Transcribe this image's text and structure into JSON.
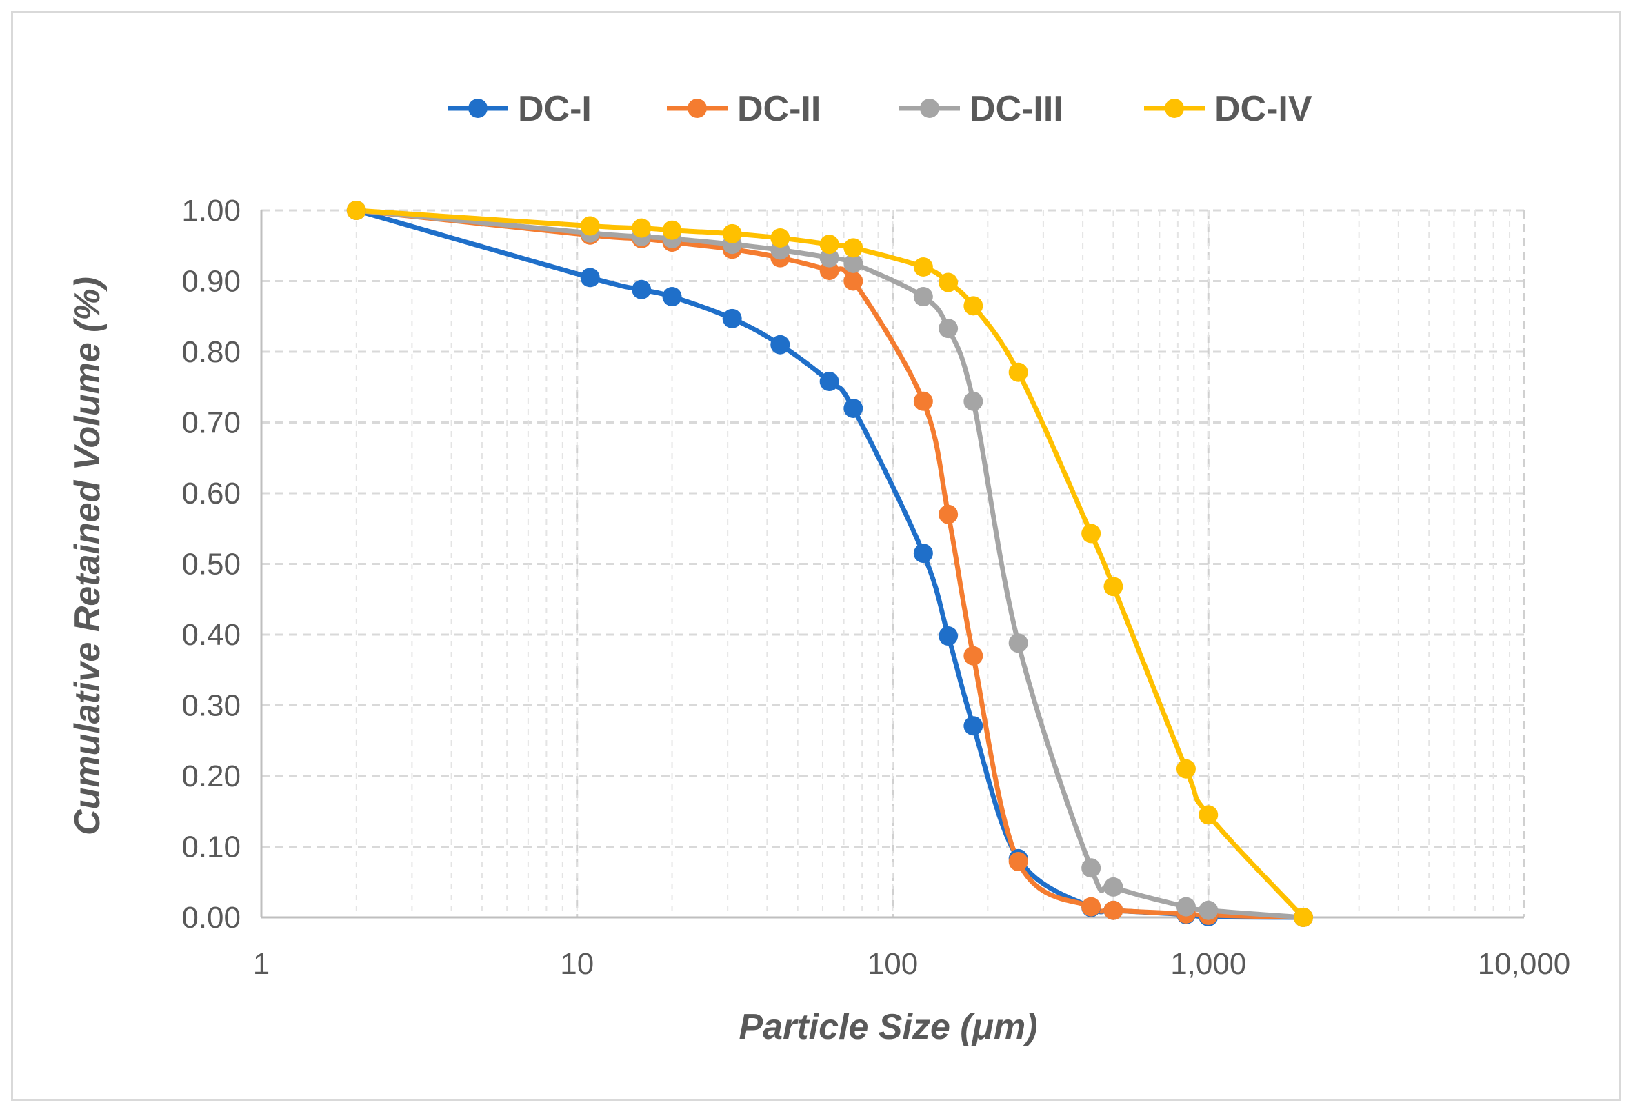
{
  "chart_data": {
    "type": "line",
    "title": "",
    "xlabel": "Particle Size (μm)",
    "ylabel": "Cumulative Retained Volume (%)",
    "x_scale": "log",
    "xlim": [
      1,
      10000
    ],
    "ylim": [
      0,
      1
    ],
    "x_ticks": [
      "1",
      "10",
      "100",
      "1,000",
      "10,000"
    ],
    "y_ticks": [
      "0.00",
      "0.10",
      "0.20",
      "0.30",
      "0.40",
      "0.50",
      "0.60",
      "0.70",
      "0.80",
      "0.90",
      "1.00"
    ],
    "grid": "dashed",
    "legend_position": "top",
    "series": [
      {
        "name": "DC-I",
        "color": "#1f6fc9",
        "x": [
          2,
          11,
          16,
          20,
          31,
          44,
          63,
          75,
          125,
          150,
          180,
          250,
          425,
          500,
          850,
          1000,
          2000
        ],
        "y": [
          1.0,
          0.905,
          0.888,
          0.878,
          0.847,
          0.81,
          0.758,
          0.72,
          0.515,
          0.398,
          0.271,
          0.083,
          0.014,
          0.01,
          0.004,
          0.001,
          0.0
        ]
      },
      {
        "name": "DC-II",
        "color": "#f47c30",
        "x": [
          2,
          11,
          16,
          20,
          31,
          44,
          63,
          75,
          125,
          150,
          180,
          250,
          425,
          500,
          850,
          1000,
          2000
        ],
        "y": [
          1.0,
          0.965,
          0.96,
          0.955,
          0.945,
          0.933,
          0.915,
          0.9,
          0.73,
          0.57,
          0.37,
          0.079,
          0.015,
          0.01,
          0.005,
          0.003,
          0.0
        ]
      },
      {
        "name": "DC-III",
        "color": "#a5a5a5",
        "x": [
          2,
          11,
          16,
          20,
          31,
          44,
          63,
          75,
          125,
          150,
          180,
          250,
          425,
          500,
          850,
          1000,
          2000
        ],
        "y": [
          1.0,
          0.968,
          0.963,
          0.96,
          0.952,
          0.944,
          0.933,
          0.925,
          0.878,
          0.833,
          0.73,
          0.388,
          0.07,
          0.043,
          0.015,
          0.01,
          0.0
        ]
      },
      {
        "name": "DC-IV",
        "color": "#ffc000",
        "x": [
          2,
          11,
          16,
          20,
          31,
          44,
          63,
          75,
          125,
          150,
          180,
          250,
          425,
          500,
          850,
          1000,
          2000
        ],
        "y": [
          1.0,
          0.978,
          0.975,
          0.972,
          0.967,
          0.961,
          0.952,
          0.947,
          0.92,
          0.898,
          0.865,
          0.771,
          0.543,
          0.468,
          0.21,
          0.145,
          0.0
        ]
      }
    ]
  }
}
